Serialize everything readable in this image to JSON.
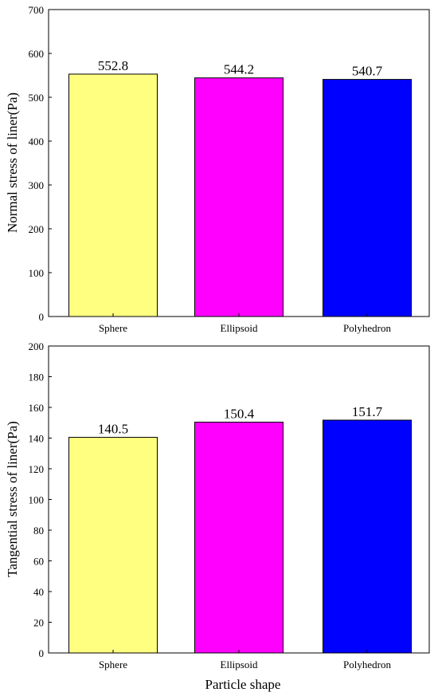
{
  "chart_data": [
    {
      "type": "bar",
      "categories": [
        "Sphere",
        "Ellipsoid",
        "Polyhedron"
      ],
      "values": [
        552.8,
        544.2,
        540.7
      ],
      "value_labels": [
        "552.8",
        "544.2",
        "540.7"
      ],
      "colors": [
        "#ffff80",
        "#ff00ff",
        "#0000ff"
      ],
      "xlabel": "",
      "ylabel": "Normal stress of liner(Pa)",
      "ylim": [
        0,
        700
      ],
      "yticks": [
        0,
        100,
        200,
        300,
        400,
        500,
        600,
        700
      ],
      "grid": false
    },
    {
      "type": "bar",
      "categories": [
        "Sphere",
        "Ellipsoid",
        "Polyhedron"
      ],
      "values": [
        140.5,
        150.4,
        151.7
      ],
      "value_labels": [
        "140.5",
        "150.4",
        "151.7"
      ],
      "colors": [
        "#ffff80",
        "#ff00ff",
        "#0000ff"
      ],
      "xlabel": "Particle shape",
      "ylabel": "Tangential stress of liner(Pa)",
      "ylim": [
        0,
        200
      ],
      "yticks": [
        0,
        20,
        40,
        60,
        80,
        100,
        120,
        140,
        160,
        180,
        200
      ],
      "grid": false
    }
  ]
}
